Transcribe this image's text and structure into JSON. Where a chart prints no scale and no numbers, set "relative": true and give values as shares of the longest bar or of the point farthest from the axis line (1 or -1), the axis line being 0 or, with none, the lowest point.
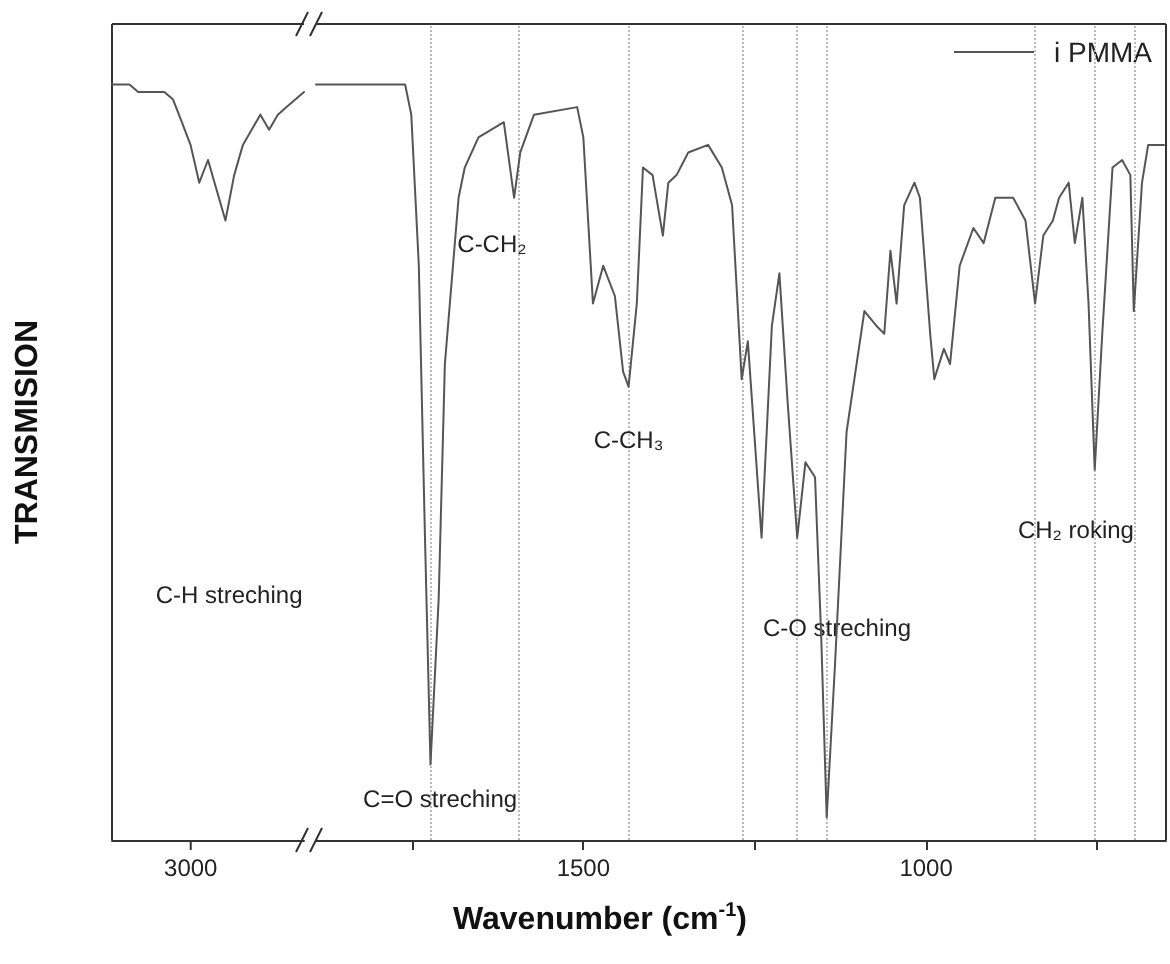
{
  "chart_data": [
    {
      "type": "line",
      "relative": true,
      "ylabel": "TRANSMISION",
      "marker": "none",
      "line_style": "solid",
      "categories": [
        null,
        null,
        null,
        null,
        null,
        null,
        null,
        null,
        null,
        null,
        null,
        null,
        null,
        null,
        null,
        null,
        null,
        null,
        null,
        null,
        null,
        null,
        null
      ],
      "series": [
        {
          "color": "#555555",
          "values": [
            1.0,
            1.0,
            1.0,
            0.99,
            0.99,
            0.99,
            0.99,
            0.98,
            0.95,
            0.92,
            0.87,
            0.9,
            0.86,
            0.82,
            0.88,
            0.92,
            0.94,
            0.96,
            0.94,
            0.96,
            0.97,
            0.98,
            0.99
          ]
        }
      ],
      "annotations": [
        "C-H streching",
        "3000"
      ]
    },
    {
      "type": "line",
      "relative": true,
      "xlabel": "Wavenumber (cm$^{-1}$)",
      "legend": "top right",
      "marker": "none",
      "line_style": "solid",
      "xlim": [
        1890,
        650
      ],
      "xticks": [
        {
          "value": 1750,
          "label": null
        },
        1500,
        {
          "value": 1250,
          "label": null
        },
        1000,
        {
          "value": 750,
          "label": null
        }
      ],
      "series": [
        {
          "name": "i PMMA",
          "color": "#555555",
          "x": [
            1890,
            1760,
            1751,
            1740,
            1731,
            1723,
            1711,
            1702,
            1682,
            1673,
            1653,
            1616,
            1601,
            1592,
            1572,
            1509,
            1500,
            1486,
            1471,
            1454,
            1442,
            1434,
            1422,
            1413,
            1399,
            1384,
            1376,
            1364,
            1347,
            1318,
            1298,
            1283,
            1269,
            1260,
            1240,
            1225,
            1214,
            1202,
            1188,
            1176,
            1162,
            1153,
            1145,
            1133,
            1116,
            1090,
            1072,
            1061,
            1052,
            1043,
            1032,
            1017,
            1009,
            994,
            988,
            974,
            965,
            951,
            931,
            916,
            899,
            873,
            855,
            841,
            829,
            815,
            806,
            792,
            783,
            772,
            763,
            754,
            743,
            728,
            714,
            702,
            697,
            685,
            676,
            653
          ],
          "values": [
            1.0,
            1.0,
            0.96,
            0.76,
            0.4,
            0.1,
            0.32,
            0.63,
            0.85,
            0.89,
            0.93,
            0.95,
            0.85,
            0.91,
            0.96,
            0.97,
            0.93,
            0.71,
            0.76,
            0.72,
            0.62,
            0.6,
            0.71,
            0.89,
            0.88,
            0.8,
            0.87,
            0.88,
            0.91,
            0.92,
            0.89,
            0.84,
            0.61,
            0.66,
            0.4,
            0.68,
            0.75,
            0.58,
            0.4,
            0.5,
            0.48,
            0.27,
            0.03,
            0.23,
            0.54,
            0.7,
            0.68,
            0.67,
            0.78,
            0.71,
            0.84,
            0.87,
            0.85,
            0.67,
            0.61,
            0.65,
            0.63,
            0.76,
            0.81,
            0.79,
            0.85,
            0.85,
            0.82,
            0.71,
            0.8,
            0.82,
            0.85,
            0.87,
            0.79,
            0.85,
            0.71,
            0.49,
            0.67,
            0.89,
            0.9,
            0.88,
            0.7,
            0.87,
            0.92,
            0.92
          ]
        }
      ],
      "ref_lines": [
        {
          "axis": "x",
          "value": 1723,
          "color": "#bbbbbb",
          "line_style": "dotted"
        },
        {
          "axis": "x",
          "value": 1595,
          "color": "#bbbbbb",
          "line_style": "dotted"
        },
        {
          "axis": "x",
          "value": 1434,
          "color": "#bbbbbb",
          "line_style": "dotted"
        },
        {
          "axis": "x",
          "value": 1269,
          "color": "#bbbbbb",
          "line_style": "dotted"
        },
        {
          "axis": "x",
          "value": 1188,
          "color": "#bbbbbb",
          "line_style": "dotted"
        },
        {
          "axis": "x",
          "value": 1145,
          "color": "#bbbbbb",
          "line_style": "dotted"
        },
        {
          "axis": "x",
          "value": 841,
          "color": "#bbbbbb",
          "line_style": "dotted"
        },
        {
          "axis": "x",
          "value": 754,
          "color": "#bbbbbb",
          "line_style": "dotted"
        },
        {
          "axis": "x",
          "value": 697,
          "color": "#bbbbbb",
          "line_style": "dotted"
        }
      ],
      "annotations": [
        "C=O streching",
        "C-CH₂",
        {
          "text": "C-CH₃",
          "x": 1434,
          "y": 0.53
        },
        {
          "text": "C-O streching",
          "x": 1130,
          "y": 0.28
        },
        "CH₂ roking"
      ]
    }
  ]
}
